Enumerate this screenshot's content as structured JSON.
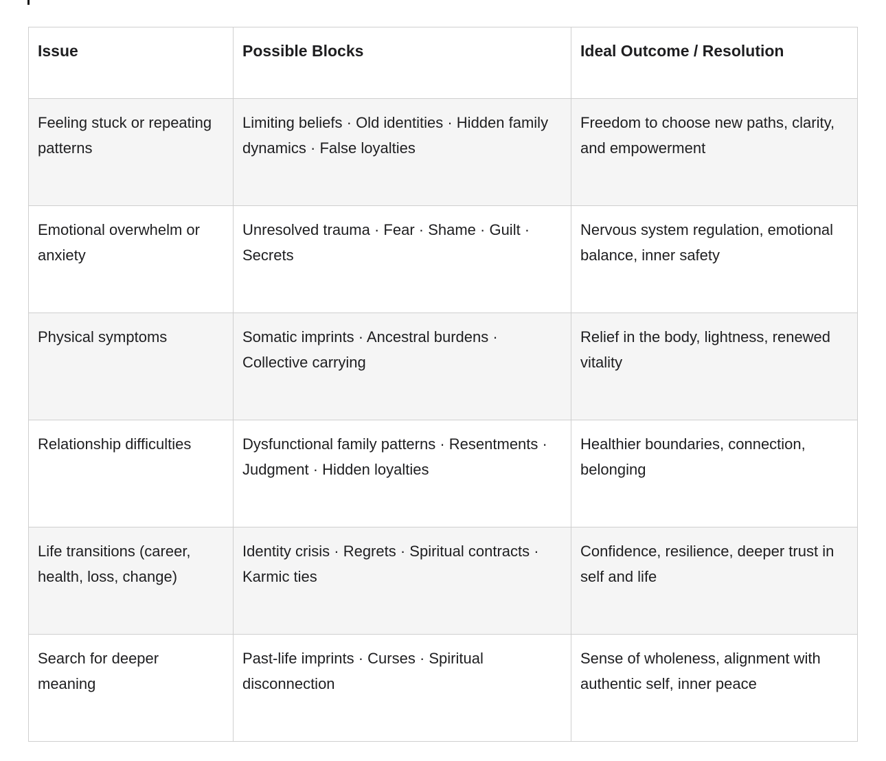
{
  "cursor": {
    "glyph": ""
  },
  "table": {
    "columns": {
      "issue": "Issue",
      "blocks": "Possible Blocks",
      "outcome": "Ideal Outcome / Resolution"
    },
    "rows": [
      {
        "issue": "Feeling stuck or repeating patterns",
        "blocks": "Limiting beliefs · Old identities · Hidden family dynamics · False loyalties",
        "outcome": "Freedom to choose new paths, clarity, and empowerment"
      },
      {
        "issue": "Emotional overwhelm or anxiety",
        "blocks": "Unresolved trauma · Fear · Shame · Guilt · Secrets",
        "outcome": "Nervous system regulation, emotional balance, inner safety"
      },
      {
        "issue": "Physical symptoms",
        "blocks": "Somatic imprints · Ancestral burdens · Collective carrying",
        "outcome": "Relief in the body, lightness, renewed vitality"
      },
      {
        "issue": "Relationship difficulties",
        "blocks": "Dysfunctional family patterns · Resentments · Judgment · Hidden loyalties",
        "outcome": "Healthier boundaries, connection, belonging"
      },
      {
        "issue": "Life transitions (career, health, loss, change)",
        "blocks": "Identity crisis · Regrets · Spiritual contracts · Karmic ties",
        "outcome": "Confidence, resilience, deeper trust in self and life"
      },
      {
        "issue": "Search for deeper meaning",
        "blocks": "Past-life imprints · Curses · Spiritual disconnection",
        "outcome": "Sense of wholeness, alignment with authentic self, inner peace"
      }
    ],
    "colors": {
      "stripe": "#f5f5f5",
      "border": "#cfcfcf",
      "text": "#1e1e20",
      "background": "#ffffff"
    }
  }
}
